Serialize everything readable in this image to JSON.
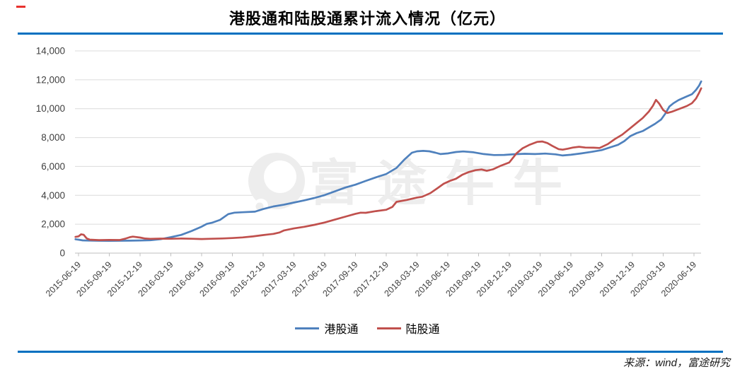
{
  "title": "港股通和陆股通累计流入情况（亿元）",
  "source_note": "来源：wind，富途研究",
  "watermark_text": "富途牛牛",
  "colors": {
    "accent_rule": "#0070C0",
    "series_blue": "#4F81BD",
    "series_red": "#C0504D",
    "grid": "#DCDCDC",
    "axis": "#BFBFBF",
    "label_text": "#3F3F3F",
    "watermark": "#EDEDED",
    "corner_mark_red": "#E8322E"
  },
  "chart_data": {
    "type": "line",
    "title": "港股通和陆股通累计流入情况（亿元）",
    "ylabel": "",
    "xlabel": "",
    "ylim": [
      0,
      14000
    ],
    "grid": true,
    "legend_position": "bottom",
    "y_ticks": [
      0,
      2000,
      4000,
      6000,
      8000,
      10000,
      12000,
      14000
    ],
    "y_tick_labels": [
      "0",
      "2,000",
      "4,000",
      "6,000",
      "8,000",
      "10,000",
      "12,000",
      "14,000"
    ],
    "x_unit": "months since 2015-06-19",
    "x_tick_months": [
      0,
      3,
      6,
      9,
      12,
      15,
      18,
      21,
      24,
      27,
      30,
      33,
      36,
      39,
      42,
      45,
      48,
      51,
      54,
      57,
      60
    ],
    "x_tick_labels": [
      "2015-06-19",
      "2015-09-19",
      "2015-12-19",
      "2016-03-19",
      "2016-06-19",
      "2016-09-19",
      "2016-12-19",
      "2017-03-19",
      "2017-06-19",
      "2017-09-19",
      "2017-12-19",
      "2018-03-19",
      "2018-06-19",
      "2018-09-19",
      "2018-12-19",
      "2019-03-19",
      "2019-06-19",
      "2019-09-19",
      "2019-12-19",
      "2020-03-19",
      "2020-06-19"
    ],
    "series": [
      {
        "id": "ggt",
        "name": "港股通",
        "color": "#4F81BD",
        "points": [
          [
            -0.3,
            960
          ],
          [
            0,
            930
          ],
          [
            0.4,
            880
          ],
          [
            1,
            868
          ],
          [
            2,
            858
          ],
          [
            3,
            852
          ],
          [
            4,
            858
          ],
          [
            5,
            862
          ],
          [
            6,
            875
          ],
          [
            7,
            892
          ],
          [
            8,
            965
          ],
          [
            9,
            1100
          ],
          [
            10,
            1260
          ],
          [
            11,
            1520
          ],
          [
            12,
            1830
          ],
          [
            12.5,
            2020
          ],
          [
            13,
            2100
          ],
          [
            13.8,
            2300
          ],
          [
            14.6,
            2700
          ],
          [
            15.2,
            2800
          ],
          [
            16,
            2830
          ],
          [
            17.2,
            2870
          ],
          [
            18,
            3050
          ],
          [
            19,
            3230
          ],
          [
            20,
            3350
          ],
          [
            21,
            3500
          ],
          [
            22,
            3650
          ],
          [
            23,
            3820
          ],
          [
            24,
            4020
          ],
          [
            25,
            4280
          ],
          [
            26,
            4540
          ],
          [
            27,
            4740
          ],
          [
            28,
            5000
          ],
          [
            29,
            5250
          ],
          [
            30,
            5480
          ],
          [
            31,
            5900
          ],
          [
            31.8,
            6500
          ],
          [
            32.5,
            6950
          ],
          [
            33,
            7050
          ],
          [
            33.6,
            7080
          ],
          [
            34.2,
            7050
          ],
          [
            34.8,
            6950
          ],
          [
            35.3,
            6860
          ],
          [
            36,
            6900
          ],
          [
            36.8,
            7000
          ],
          [
            37.5,
            7040
          ],
          [
            38.5,
            6980
          ],
          [
            39.5,
            6860
          ],
          [
            40.5,
            6790
          ],
          [
            41.5,
            6800
          ],
          [
            42.5,
            6850
          ],
          [
            43.5,
            6880
          ],
          [
            44.5,
            6860
          ],
          [
            45.5,
            6890
          ],
          [
            46.5,
            6840
          ],
          [
            47.2,
            6760
          ],
          [
            48,
            6810
          ],
          [
            49,
            6900
          ],
          [
            50,
            7010
          ],
          [
            51,
            7130
          ],
          [
            52,
            7360
          ],
          [
            52.6,
            7500
          ],
          [
            53.2,
            7750
          ],
          [
            53.8,
            8100
          ],
          [
            54.4,
            8300
          ],
          [
            55,
            8450
          ],
          [
            55.6,
            8700
          ],
          [
            56.2,
            8950
          ],
          [
            56.8,
            9250
          ],
          [
            57.2,
            9650
          ],
          [
            57.6,
            10150
          ],
          [
            58,
            10380
          ],
          [
            58.5,
            10600
          ],
          [
            59.2,
            10820
          ],
          [
            59.8,
            11000
          ],
          [
            60.2,
            11300
          ],
          [
            60.5,
            11600
          ],
          [
            60.7,
            11890
          ]
        ]
      },
      {
        "id": "lgt",
        "name": "陆股通",
        "color": "#C0504D",
        "points": [
          [
            -0.3,
            1120
          ],
          [
            0,
            1160
          ],
          [
            0.25,
            1300
          ],
          [
            0.5,
            1270
          ],
          [
            0.8,
            1020
          ],
          [
            1.1,
            930
          ],
          [
            2,
            900
          ],
          [
            3,
            915
          ],
          [
            4,
            905
          ],
          [
            4.6,
            1010
          ],
          [
            5,
            1100
          ],
          [
            5.3,
            1140
          ],
          [
            6,
            1075
          ],
          [
            6.5,
            1010
          ],
          [
            7,
            990
          ],
          [
            8,
            1005
          ],
          [
            9,
            992
          ],
          [
            10,
            1010
          ],
          [
            11,
            992
          ],
          [
            12,
            972
          ],
          [
            13,
            992
          ],
          [
            14,
            1015
          ],
          [
            15,
            1045
          ],
          [
            16,
            1085
          ],
          [
            17,
            1155
          ],
          [
            18,
            1250
          ],
          [
            19,
            1330
          ],
          [
            19.6,
            1430
          ],
          [
            20,
            1560
          ],
          [
            21,
            1710
          ],
          [
            22,
            1820
          ],
          [
            23,
            1960
          ],
          [
            24,
            2120
          ],
          [
            25,
            2320
          ],
          [
            26,
            2520
          ],
          [
            27,
            2720
          ],
          [
            27.5,
            2800
          ],
          [
            28,
            2790
          ],
          [
            29,
            2910
          ],
          [
            30,
            3000
          ],
          [
            30.6,
            3200
          ],
          [
            31,
            3550
          ],
          [
            32,
            3680
          ],
          [
            33,
            3850
          ],
          [
            33.5,
            3900
          ],
          [
            34.3,
            4150
          ],
          [
            35,
            4500
          ],
          [
            35.6,
            4800
          ],
          [
            36.2,
            5000
          ],
          [
            36.8,
            5150
          ],
          [
            37.4,
            5420
          ],
          [
            38,
            5600
          ],
          [
            38.7,
            5740
          ],
          [
            39.3,
            5790
          ],
          [
            39.8,
            5700
          ],
          [
            40.4,
            5800
          ],
          [
            41.2,
            6060
          ],
          [
            42,
            6280
          ],
          [
            42.7,
            6910
          ],
          [
            43.3,
            7260
          ],
          [
            44,
            7510
          ],
          [
            44.7,
            7700
          ],
          [
            45.2,
            7730
          ],
          [
            45.7,
            7620
          ],
          [
            46.2,
            7420
          ],
          [
            46.8,
            7200
          ],
          [
            47.2,
            7160
          ],
          [
            47.7,
            7230
          ],
          [
            48.2,
            7310
          ],
          [
            48.8,
            7360
          ],
          [
            49.4,
            7310
          ],
          [
            50.2,
            7300
          ],
          [
            50.8,
            7280
          ],
          [
            51.6,
            7550
          ],
          [
            52.3,
            7900
          ],
          [
            53,
            8200
          ],
          [
            53.7,
            8600
          ],
          [
            54.4,
            9000
          ],
          [
            55,
            9350
          ],
          [
            55.6,
            9800
          ],
          [
            56,
            10200
          ],
          [
            56.3,
            10610
          ],
          [
            56.6,
            10360
          ],
          [
            57,
            9910
          ],
          [
            57.4,
            9700
          ],
          [
            57.9,
            9800
          ],
          [
            58.6,
            9990
          ],
          [
            59.3,
            10180
          ],
          [
            59.8,
            10380
          ],
          [
            60.2,
            10700
          ],
          [
            60.5,
            11100
          ],
          [
            60.7,
            11410
          ]
        ]
      }
    ]
  }
}
